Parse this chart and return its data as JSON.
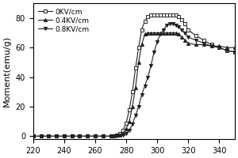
{
  "title": "",
  "xlabel": "",
  "ylabel": "Moment(emu/g)",
  "xlim": [
    220,
    350
  ],
  "ylim": [
    -2,
    90
  ],
  "xticks": [
    220,
    240,
    260,
    280,
    300,
    320,
    340
  ],
  "yticks": [
    0,
    20,
    40,
    60,
    80
  ],
  "series": [
    {
      "label": "0KV/cm",
      "marker": "s",
      "markerfacecolor": "white",
      "color": "#222222",
      "x": [
        220,
        225,
        230,
        235,
        240,
        245,
        250,
        255,
        260,
        265,
        270,
        272,
        274,
        276,
        278,
        280,
        282,
        284,
        286,
        288,
        290,
        292,
        294,
        296,
        298,
        300,
        302,
        304,
        306,
        308,
        310,
        312,
        314,
        316,
        318,
        320,
        325,
        330,
        335,
        340,
        345,
        350
      ],
      "y": [
        0,
        0,
        0,
        0,
        0,
        0,
        0,
        0,
        0,
        0,
        0,
        0,
        1,
        2,
        4,
        9,
        18,
        30,
        46,
        60,
        72,
        78,
        81,
        82,
        82,
        82,
        82,
        82,
        82,
        82,
        82,
        82,
        81,
        79,
        76,
        72,
        68,
        65,
        62,
        60,
        58,
        57
      ]
    },
    {
      "label": "0.4KV/cm",
      "marker": "^",
      "markerfacecolor": "#222222",
      "color": "#222222",
      "x": [
        220,
        225,
        230,
        235,
        240,
        245,
        250,
        255,
        260,
        265,
        270,
        272,
        274,
        276,
        278,
        280,
        282,
        284,
        286,
        288,
        290,
        292,
        294,
        296,
        298,
        300,
        302,
        304,
        306,
        308,
        310,
        312,
        314,
        316,
        318,
        320,
        325,
        330,
        335,
        340,
        345,
        350
      ],
      "y": [
        0,
        0,
        0,
        0,
        0,
        0,
        0,
        0,
        0,
        0,
        0,
        0,
        0.5,
        1,
        2,
        5,
        10,
        20,
        33,
        50,
        62,
        69,
        70,
        70,
        70,
        70,
        70,
        70,
        70,
        70,
        70,
        70,
        69,
        67,
        65,
        63,
        62,
        62,
        61,
        61,
        60,
        60
      ]
    },
    {
      "label": "0.8KV/cm",
      "marker": "v",
      "markerfacecolor": "#222222",
      "color": "#222222",
      "x": [
        220,
        225,
        230,
        235,
        240,
        245,
        250,
        255,
        260,
        265,
        270,
        272,
        274,
        276,
        278,
        280,
        282,
        284,
        286,
        288,
        290,
        292,
        294,
        296,
        298,
        300,
        302,
        304,
        306,
        308,
        310,
        312,
        314,
        316,
        318,
        320,
        325,
        330,
        335,
        340,
        345,
        350
      ],
      "y": [
        0,
        0,
        0,
        0,
        0,
        0,
        0,
        0,
        0,
        0,
        0,
        0,
        0,
        0.5,
        1,
        2,
        4,
        8,
        14,
        20,
        28,
        34,
        40,
        48,
        57,
        64,
        69,
        72,
        75,
        76,
        76,
        75,
        74,
        72,
        70,
        67,
        65,
        63,
        61,
        60,
        58,
        57
      ]
    }
  ],
  "background_color": "#ffffff",
  "legend_loc": "upper left",
  "legend_fontsize": 6.5,
  "tick_fontsize": 7,
  "label_fontsize": 8
}
